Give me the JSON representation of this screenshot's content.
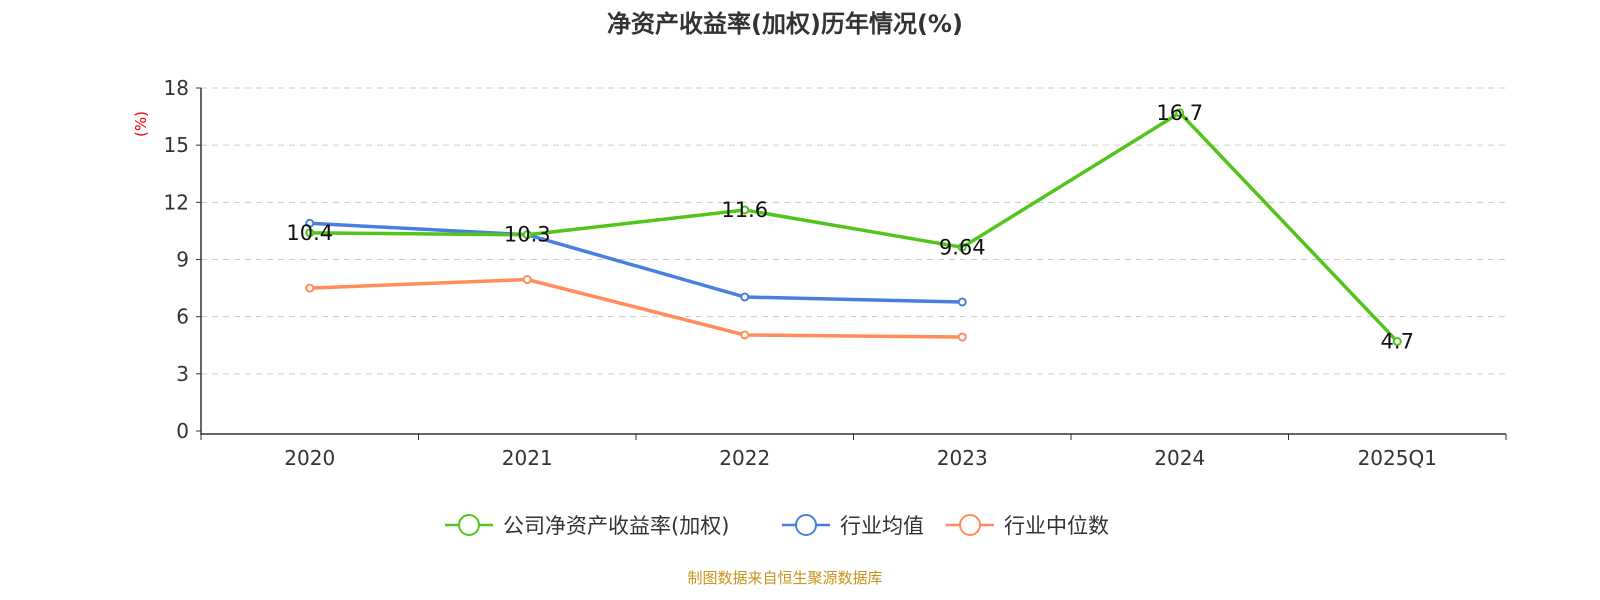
{
  "chart_data": {
    "type": "line",
    "title": "净资产收益率(加权)历年情况(%)",
    "ylabel": "(%)",
    "categories": [
      "2020",
      "2021",
      "2022",
      "2023",
      "2024",
      "2025Q1"
    ],
    "ylim": [
      0,
      18
    ],
    "yticks": [
      0,
      3,
      6,
      9,
      12,
      15,
      18
    ],
    "grid": true,
    "legend_position": "bottom",
    "series": [
      {
        "name": "公司净资产收益率(加权)",
        "color": "#52c41a",
        "values": [
          10.4,
          10.3,
          11.6,
          9.64,
          16.7,
          4.7
        ],
        "labels": [
          "10.4",
          "10.3",
          "11.6",
          "9.64",
          "16.7",
          "4.7"
        ]
      },
      {
        "name": "行业均值",
        "color": "#4a7fe0",
        "values": [
          10.9,
          10.3,
          7.03,
          6.77,
          null,
          null
        ]
      },
      {
        "name": "行业中位数",
        "color": "#ff8c5a",
        "values": [
          7.5,
          7.95,
          5.04,
          4.93,
          null,
          null
        ]
      }
    ]
  },
  "footer": "制图数据来自恒生聚源数据库"
}
